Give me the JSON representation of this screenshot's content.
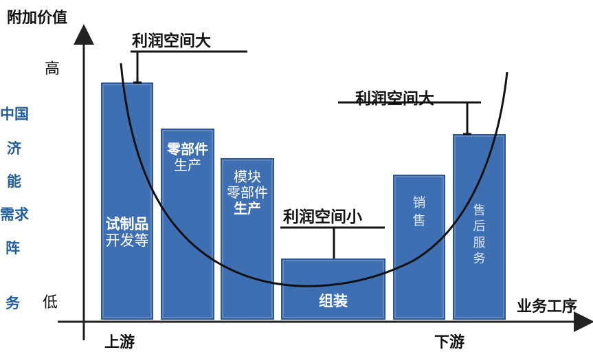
{
  "axes": {
    "y_label": "附加价值",
    "x_label": "业务工序",
    "y_high": "高",
    "y_low": "低",
    "upstream": "上游",
    "downstream": "下游"
  },
  "side_text": [
    "中国",
    "济",
    "能",
    "需求",
    "阵",
    "务"
  ],
  "annotations": {
    "profit_left": "利润空间大",
    "profit_right": "利润空间大",
    "profit_mid": "利润空间小"
  },
  "bars": [
    {
      "lines": [
        "试制品",
        "开发等"
      ]
    },
    {
      "lines": [
        "零部件",
        "生产"
      ]
    },
    {
      "lines": [
        "模块",
        "零部件",
        "生产"
      ]
    },
    {
      "lines": [
        "组装"
      ]
    },
    {
      "lines": [
        "销",
        "售"
      ]
    },
    {
      "lines": [
        "售",
        "后",
        "服",
        "务"
      ]
    }
  ],
  "colors": {
    "bar_fill": "#3f6fb3",
    "bar_border": "#2d5592",
    "side_text": "#1f5d9f"
  }
}
